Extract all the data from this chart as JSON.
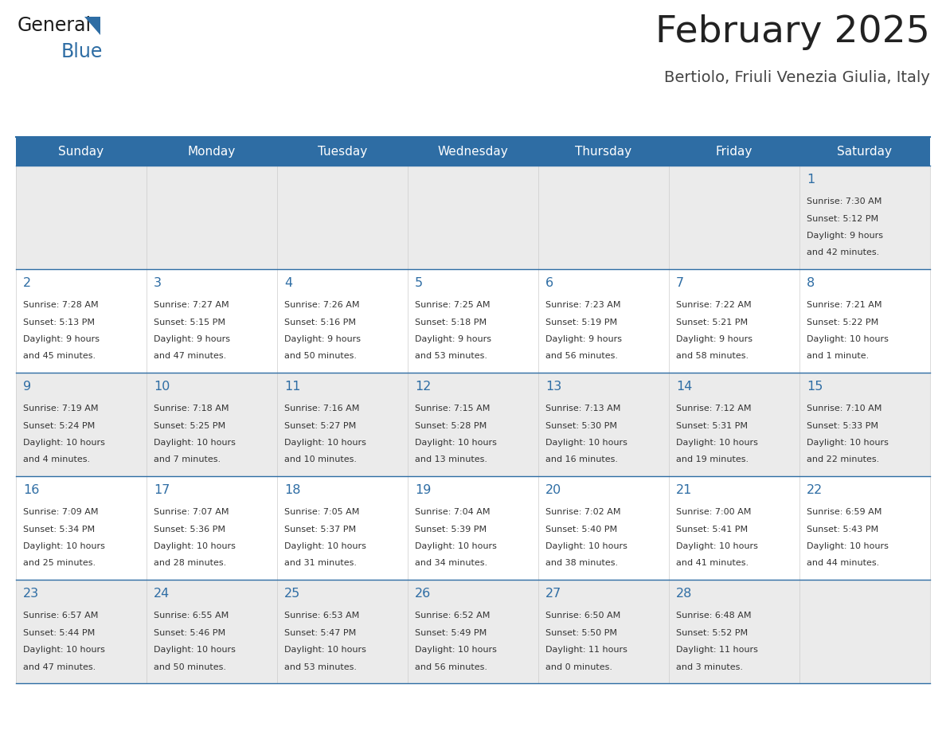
{
  "title": "February 2025",
  "subtitle": "Bertiolo, Friuli Venezia Giulia, Italy",
  "header_bg": "#2e6da4",
  "header_text_color": "#ffffff",
  "cell_bg_odd": "#ebebeb",
  "cell_bg_even": "#ffffff",
  "day_headers": [
    "Sunday",
    "Monday",
    "Tuesday",
    "Wednesday",
    "Thursday",
    "Friday",
    "Saturday"
  ],
  "title_color": "#222222",
  "subtitle_color": "#444444",
  "number_color": "#2e6da4",
  "text_color": "#333333",
  "line_color": "#2e6da4",
  "days": [
    {
      "day": 1,
      "col": 6,
      "row": 0,
      "sunrise": "7:30 AM",
      "sunset": "5:12 PM",
      "daylight_line1": "Daylight: 9 hours",
      "daylight_line2": "and 42 minutes."
    },
    {
      "day": 2,
      "col": 0,
      "row": 1,
      "sunrise": "7:28 AM",
      "sunset": "5:13 PM",
      "daylight_line1": "Daylight: 9 hours",
      "daylight_line2": "and 45 minutes."
    },
    {
      "day": 3,
      "col": 1,
      "row": 1,
      "sunrise": "7:27 AM",
      "sunset": "5:15 PM",
      "daylight_line1": "Daylight: 9 hours",
      "daylight_line2": "and 47 minutes."
    },
    {
      "day": 4,
      "col": 2,
      "row": 1,
      "sunrise": "7:26 AM",
      "sunset": "5:16 PM",
      "daylight_line1": "Daylight: 9 hours",
      "daylight_line2": "and 50 minutes."
    },
    {
      "day": 5,
      "col": 3,
      "row": 1,
      "sunrise": "7:25 AM",
      "sunset": "5:18 PM",
      "daylight_line1": "Daylight: 9 hours",
      "daylight_line2": "and 53 minutes."
    },
    {
      "day": 6,
      "col": 4,
      "row": 1,
      "sunrise": "7:23 AM",
      "sunset": "5:19 PM",
      "daylight_line1": "Daylight: 9 hours",
      "daylight_line2": "and 56 minutes."
    },
    {
      "day": 7,
      "col": 5,
      "row": 1,
      "sunrise": "7:22 AM",
      "sunset": "5:21 PM",
      "daylight_line1": "Daylight: 9 hours",
      "daylight_line2": "and 58 minutes."
    },
    {
      "day": 8,
      "col": 6,
      "row": 1,
      "sunrise": "7:21 AM",
      "sunset": "5:22 PM",
      "daylight_line1": "Daylight: 10 hours",
      "daylight_line2": "and 1 minute."
    },
    {
      "day": 9,
      "col": 0,
      "row": 2,
      "sunrise": "7:19 AM",
      "sunset": "5:24 PM",
      "daylight_line1": "Daylight: 10 hours",
      "daylight_line2": "and 4 minutes."
    },
    {
      "day": 10,
      "col": 1,
      "row": 2,
      "sunrise": "7:18 AM",
      "sunset": "5:25 PM",
      "daylight_line1": "Daylight: 10 hours",
      "daylight_line2": "and 7 minutes."
    },
    {
      "day": 11,
      "col": 2,
      "row": 2,
      "sunrise": "7:16 AM",
      "sunset": "5:27 PM",
      "daylight_line1": "Daylight: 10 hours",
      "daylight_line2": "and 10 minutes."
    },
    {
      "day": 12,
      "col": 3,
      "row": 2,
      "sunrise": "7:15 AM",
      "sunset": "5:28 PM",
      "daylight_line1": "Daylight: 10 hours",
      "daylight_line2": "and 13 minutes."
    },
    {
      "day": 13,
      "col": 4,
      "row": 2,
      "sunrise": "7:13 AM",
      "sunset": "5:30 PM",
      "daylight_line1": "Daylight: 10 hours",
      "daylight_line2": "and 16 minutes."
    },
    {
      "day": 14,
      "col": 5,
      "row": 2,
      "sunrise": "7:12 AM",
      "sunset": "5:31 PM",
      "daylight_line1": "Daylight: 10 hours",
      "daylight_line2": "and 19 minutes."
    },
    {
      "day": 15,
      "col": 6,
      "row": 2,
      "sunrise": "7:10 AM",
      "sunset": "5:33 PM",
      "daylight_line1": "Daylight: 10 hours",
      "daylight_line2": "and 22 minutes."
    },
    {
      "day": 16,
      "col": 0,
      "row": 3,
      "sunrise": "7:09 AM",
      "sunset": "5:34 PM",
      "daylight_line1": "Daylight: 10 hours",
      "daylight_line2": "and 25 minutes."
    },
    {
      "day": 17,
      "col": 1,
      "row": 3,
      "sunrise": "7:07 AM",
      "sunset": "5:36 PM",
      "daylight_line1": "Daylight: 10 hours",
      "daylight_line2": "and 28 minutes."
    },
    {
      "day": 18,
      "col": 2,
      "row": 3,
      "sunrise": "7:05 AM",
      "sunset": "5:37 PM",
      "daylight_line1": "Daylight: 10 hours",
      "daylight_line2": "and 31 minutes."
    },
    {
      "day": 19,
      "col": 3,
      "row": 3,
      "sunrise": "7:04 AM",
      "sunset": "5:39 PM",
      "daylight_line1": "Daylight: 10 hours",
      "daylight_line2": "and 34 minutes."
    },
    {
      "day": 20,
      "col": 4,
      "row": 3,
      "sunrise": "7:02 AM",
      "sunset": "5:40 PM",
      "daylight_line1": "Daylight: 10 hours",
      "daylight_line2": "and 38 minutes."
    },
    {
      "day": 21,
      "col": 5,
      "row": 3,
      "sunrise": "7:00 AM",
      "sunset": "5:41 PM",
      "daylight_line1": "Daylight: 10 hours",
      "daylight_line2": "and 41 minutes."
    },
    {
      "day": 22,
      "col": 6,
      "row": 3,
      "sunrise": "6:59 AM",
      "sunset": "5:43 PM",
      "daylight_line1": "Daylight: 10 hours",
      "daylight_line2": "and 44 minutes."
    },
    {
      "day": 23,
      "col": 0,
      "row": 4,
      "sunrise": "6:57 AM",
      "sunset": "5:44 PM",
      "daylight_line1": "Daylight: 10 hours",
      "daylight_line2": "and 47 minutes."
    },
    {
      "day": 24,
      "col": 1,
      "row": 4,
      "sunrise": "6:55 AM",
      "sunset": "5:46 PM",
      "daylight_line1": "Daylight: 10 hours",
      "daylight_line2": "and 50 minutes."
    },
    {
      "day": 25,
      "col": 2,
      "row": 4,
      "sunrise": "6:53 AM",
      "sunset": "5:47 PM",
      "daylight_line1": "Daylight: 10 hours",
      "daylight_line2": "and 53 minutes."
    },
    {
      "day": 26,
      "col": 3,
      "row": 4,
      "sunrise": "6:52 AM",
      "sunset": "5:49 PM",
      "daylight_line1": "Daylight: 10 hours",
      "daylight_line2": "and 56 minutes."
    },
    {
      "day": 27,
      "col": 4,
      "row": 4,
      "sunrise": "6:50 AM",
      "sunset": "5:50 PM",
      "daylight_line1": "Daylight: 11 hours",
      "daylight_line2": "and 0 minutes."
    },
    {
      "day": 28,
      "col": 5,
      "row": 4,
      "sunrise": "6:48 AM",
      "sunset": "5:52 PM",
      "daylight_line1": "Daylight: 11 hours",
      "daylight_line2": "and 3 minutes."
    }
  ]
}
